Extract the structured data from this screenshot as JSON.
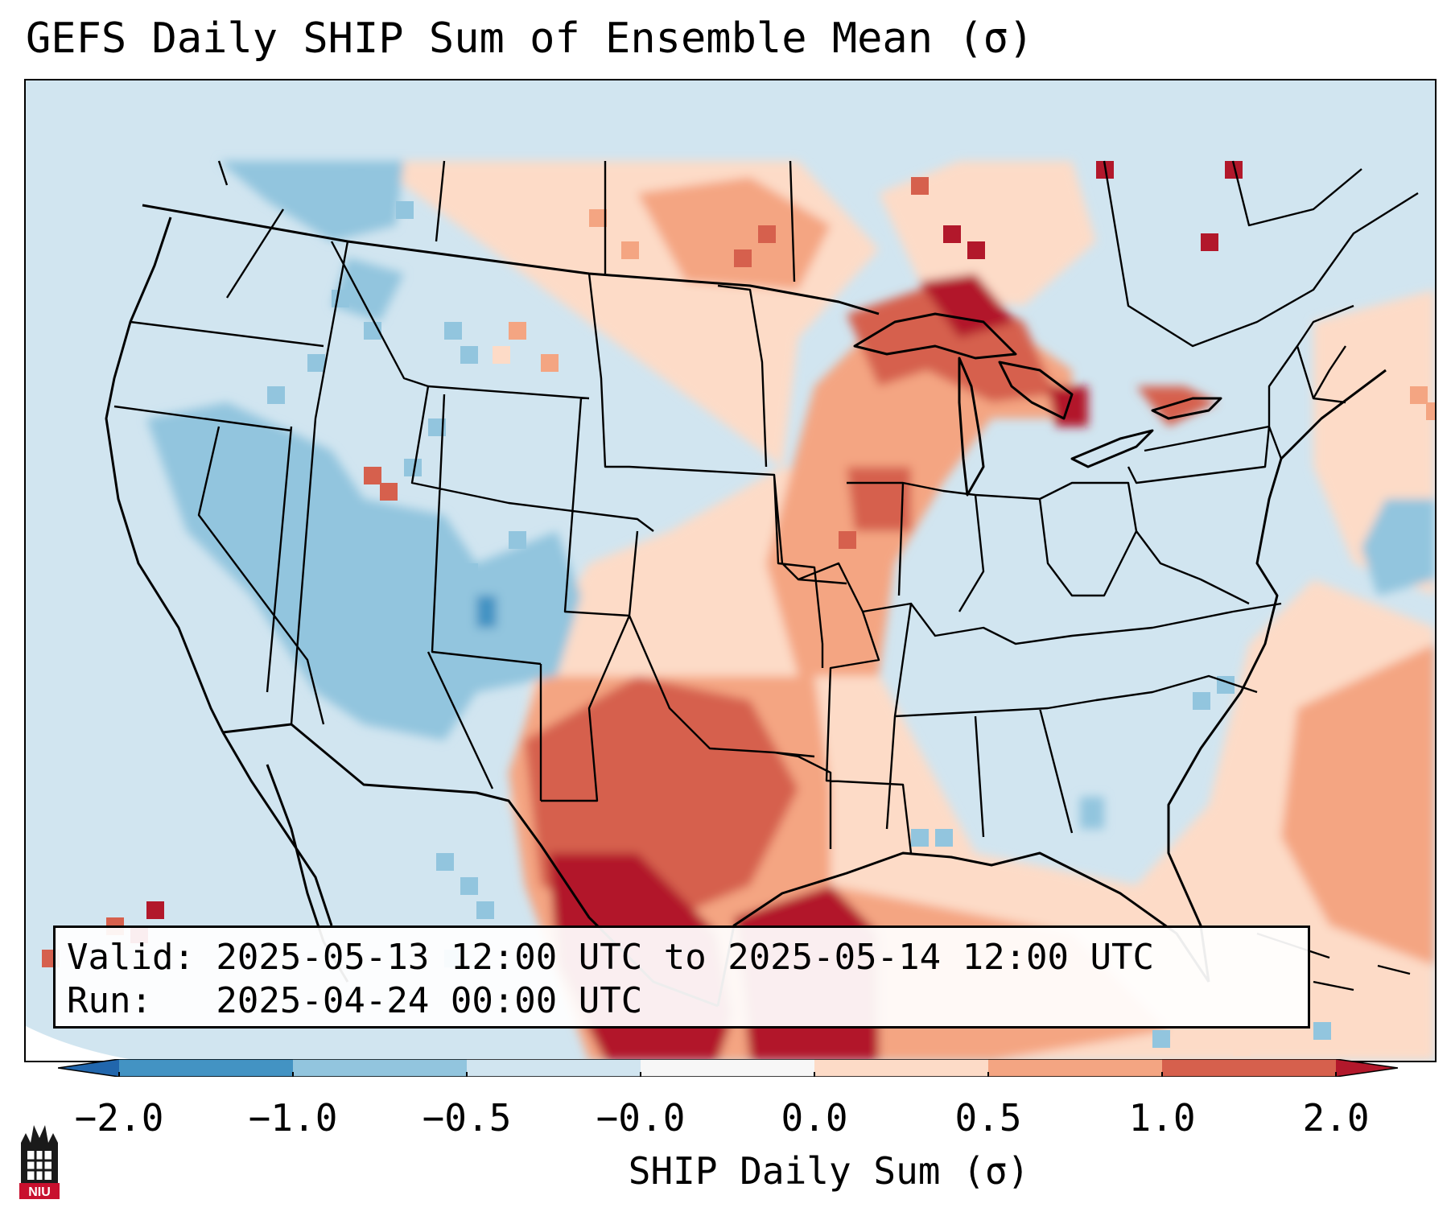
{
  "title": "GEFS Daily SHIP Sum of Ensemble Mean (σ)",
  "info": {
    "valid_line": "Valid: 2025-05-13 12:00 UTC to 2025-05-14 12:00 UTC",
    "run_line": "Run:   2025-04-24 00:00 UTC"
  },
  "colorbar": {
    "label": "SHIP Daily Sum (σ)",
    "ticks": [
      "−2.0",
      "−1.0",
      "−0.5",
      "−0.0",
      "0.0",
      "0.5",
      "1.0",
      "2.0"
    ],
    "colors": [
      "#4393c3",
      "#92c5de",
      "#d1e5f0",
      "#f7f7f7",
      "#fddbc7",
      "#f4a582",
      "#d6604d",
      "#b2182b"
    ],
    "extend": "both"
  },
  "map": {
    "region": "Contiguous United States",
    "anomaly_regions": [
      {
        "area": "Texas and Gulf of Mexico",
        "level": "≥ 2.0"
      },
      {
        "area": "Upper Peninsula of Michigan / Lake Superior",
        "level": "≥ 2.0"
      },
      {
        "area": "Oklahoma / Missouri / Iowa / Wisconsin",
        "level": "0.5 to 2.0"
      },
      {
        "area": "Northern Plains",
        "level": "0.0 to 1.0"
      },
      {
        "area": "Intermountain West / Four Corners",
        "level": "−1.0 to −0.5"
      },
      {
        "area": "Western Atlantic",
        "level": "0.0 to 1.0"
      }
    ]
  },
  "logo": {
    "text": "NIU"
  }
}
